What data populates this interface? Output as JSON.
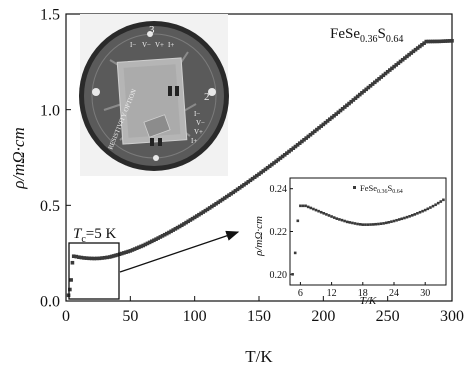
{
  "chart_data": [
    {
      "type": "scatter",
      "title": "",
      "xlabel": "T/K",
      "ylabel": "ρ/mΩ·cm",
      "xlim": [
        0,
        300
      ],
      "ylim": [
        0,
        1.5
      ],
      "xticks": [
        0,
        50,
        100,
        150,
        200,
        250,
        300
      ],
      "yticks": [
        0.0,
        0.5,
        1.0,
        1.5
      ],
      "xtick_labels": [
        "0",
        "50",
        "100",
        "150",
        "200",
        "250",
        "300"
      ],
      "ytick_labels": [
        "0.0",
        "0.5",
        "1.0",
        "1.5"
      ],
      "grid": false,
      "legend": "top-right",
      "series": [
        {
          "name": "FeSe0.36S0.64",
          "color": "#3a3a3a",
          "x": [
            2,
            3,
            4,
            5,
            6,
            8,
            10,
            14,
            18,
            22,
            26,
            30,
            34,
            40,
            50,
            60,
            70,
            80,
            90,
            100,
            110,
            120,
            130,
            140,
            150,
            160,
            170,
            180,
            190,
            200,
            210,
            220,
            230,
            240,
            250,
            260,
            270,
            280,
            290,
            300
          ],
          "y": [
            0.03,
            0.06,
            0.11,
            0.2,
            0.234,
            0.232,
            0.229,
            0.225,
            0.223,
            0.222,
            0.223,
            0.226,
            0.23,
            0.241,
            0.262,
            0.29,
            0.323,
            0.358,
            0.396,
            0.437,
            0.479,
            0.523,
            0.568,
            0.615,
            0.663,
            0.713,
            0.764,
            0.816,
            0.869,
            0.923,
            0.977,
            1.032,
            1.088,
            1.143,
            1.198,
            1.252,
            1.305,
            1.356,
            1.357,
            1.36
          ]
        }
      ],
      "annotations": {
        "legend_label": {
          "base": "FeSe",
          "sub1": "0.36",
          "mid": "S",
          "sub2": "0.64"
        },
        "tc_label": {
          "prefix": "T",
          "sub": "c",
          "suffix": "=5 K"
        }
      }
    },
    {
      "type": "scatter",
      "title": "",
      "xlabel": "T/K",
      "ylabel": "ρ/mΩ·cm",
      "xlim": [
        4,
        34
      ],
      "ylim": [
        0.195,
        0.245
      ],
      "xticks": [
        6,
        12,
        18,
        24,
        30
      ],
      "yticks": [
        0.2,
        0.22,
        0.24
      ],
      "xtick_labels": [
        "6",
        "12",
        "18",
        "24",
        "30"
      ],
      "ytick_labels": [
        "0.20",
        "0.22",
        "0.24"
      ],
      "grid": false,
      "legend": "top-right",
      "series": [
        {
          "name": "FeSe0.36S0.64",
          "color": "#3a3a3a",
          "x": [
            4.5,
            5,
            5.5,
            6,
            7,
            8,
            9,
            10,
            11,
            12,
            13,
            14,
            15,
            16,
            17,
            18,
            19,
            20,
            21,
            22,
            23,
            24,
            25,
            26,
            27,
            28,
            29,
            30,
            31,
            32,
            33,
            33.5
          ],
          "y": [
            0.2,
            0.21,
            0.225,
            0.232,
            0.232,
            0.231,
            0.23,
            0.229,
            0.228,
            0.227,
            0.226,
            0.2253,
            0.2245,
            0.224,
            0.2235,
            0.2232,
            0.2232,
            0.2233,
            0.2235,
            0.2238,
            0.2243,
            0.2249,
            0.2256,
            0.2263,
            0.2271,
            0.228,
            0.229,
            0.23,
            0.2312,
            0.2325,
            0.234,
            0.2348
          ]
        }
      ],
      "annotations": {
        "legend_label": {
          "base": "FeSe",
          "sub1": "0.36",
          "mid": "S",
          "sub2": "0.64"
        }
      }
    }
  ],
  "photo": {
    "board_labels": [
      "3",
      "2",
      "I−",
      "V−",
      "V+",
      "I+",
      "RESISTIVITY OPTION"
    ],
    "board_color": "#5a5a5a",
    "rim_color": "#2a2a2a"
  }
}
